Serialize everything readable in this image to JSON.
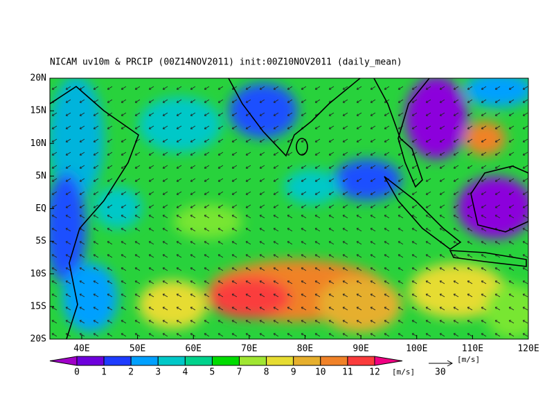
{
  "title": "NICAM uv10m & PRCIP (00Z14NOV2011) init:00Z10NOV2011 (daily_mean)",
  "lon_labels": [
    "40E",
    "50E",
    "60E",
    "70E",
    "80E",
    "90E",
    "100E",
    "110E",
    "120E"
  ],
  "lat_labels": [
    "20N",
    "15N",
    "10N",
    "5N",
    "EQ",
    "5S",
    "10S",
    "15S",
    "20S"
  ],
  "colorbar": {
    "levels": [
      0,
      1,
      2,
      3,
      4,
      5,
      7,
      8,
      9,
      10,
      11,
      12
    ],
    "unit": "[m/s]"
  },
  "reference_vector": {
    "value": 30,
    "unit": "[m/s]"
  }
}
